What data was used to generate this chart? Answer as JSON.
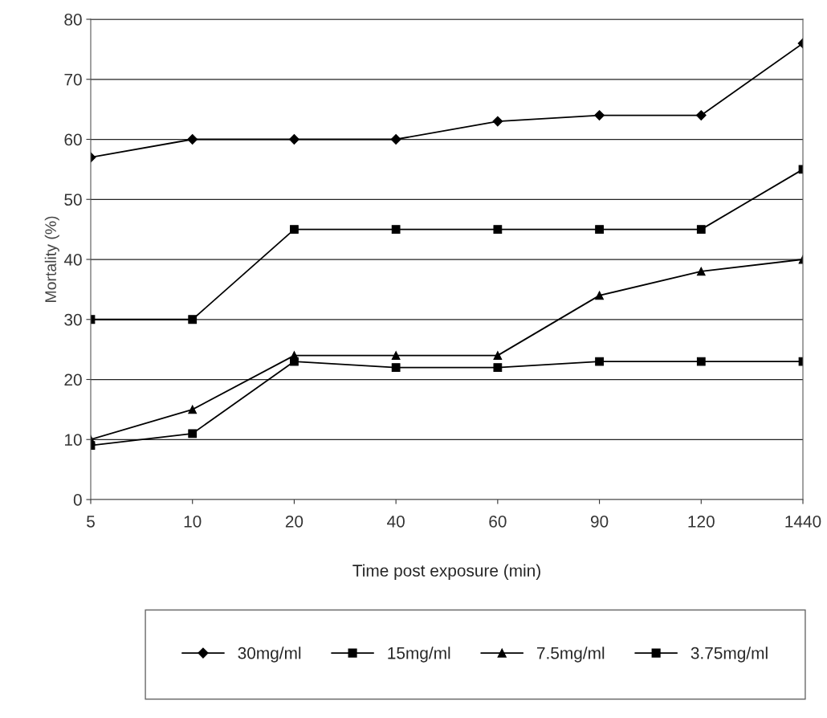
{
  "chart_data": {
    "type": "line",
    "xlabel": "Time post exposure (min)",
    "ylabel": "Mortality (%)",
    "categories": [
      "5",
      "10",
      "20",
      "40",
      "60",
      "90",
      "120",
      "1440"
    ],
    "series": [
      {
        "name": "30mg/ml",
        "color": "#000000",
        "marker": "diamond",
        "values": [
          57,
          60,
          60,
          60,
          63,
          64,
          64,
          76
        ]
      },
      {
        "name": "15mg/ml",
        "color": "#000000",
        "marker": "square",
        "values": [
          30,
          30,
          45,
          45,
          45,
          45,
          45,
          55
        ]
      },
      {
        "name": "7.5mg/ml",
        "color": "#000000",
        "marker": "triangle",
        "values": [
          10,
          15,
          24,
          24,
          24,
          34,
          38,
          40
        ]
      },
      {
        "name": "3.75mg/ml",
        "color": "#000000",
        "marker": "square",
        "values": [
          9,
          11,
          23,
          22,
          22,
          23,
          23,
          23
        ]
      }
    ],
    "ylim": [
      0,
      80
    ],
    "yticks": [
      0,
      10,
      20,
      30,
      40,
      50,
      60,
      70,
      80
    ],
    "grid": "y",
    "legend": "bottom"
  }
}
